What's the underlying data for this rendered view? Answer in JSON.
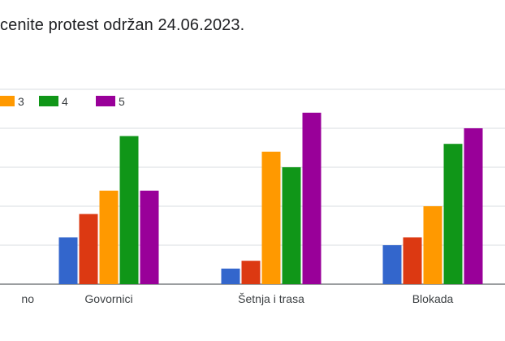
{
  "chart_data": {
    "type": "bar",
    "title": "cenite protest održan 24.06.2023.",
    "categories": [
      "no",
      "Govornici",
      "Šetnja i trasa",
      "Blokada"
    ],
    "series": [
      {
        "name": "",
        "color": "#3366cc",
        "values": [
          null,
          12,
          4,
          10
        ]
      },
      {
        "name": "",
        "color": "#dc3912",
        "values": [
          null,
          18,
          6,
          12
        ]
      },
      {
        "name": "3",
        "color": "#ff9900",
        "values": [
          null,
          24,
          34,
          20
        ]
      },
      {
        "name": "4",
        "color": "#109618",
        "values": [
          null,
          38,
          30,
          36
        ]
      },
      {
        "name": "5",
        "color": "#990099",
        "values": [
          null,
          24,
          44,
          40
        ]
      }
    ],
    "ylim": [
      0,
      50
    ],
    "grid": true,
    "legend_position": "top"
  }
}
